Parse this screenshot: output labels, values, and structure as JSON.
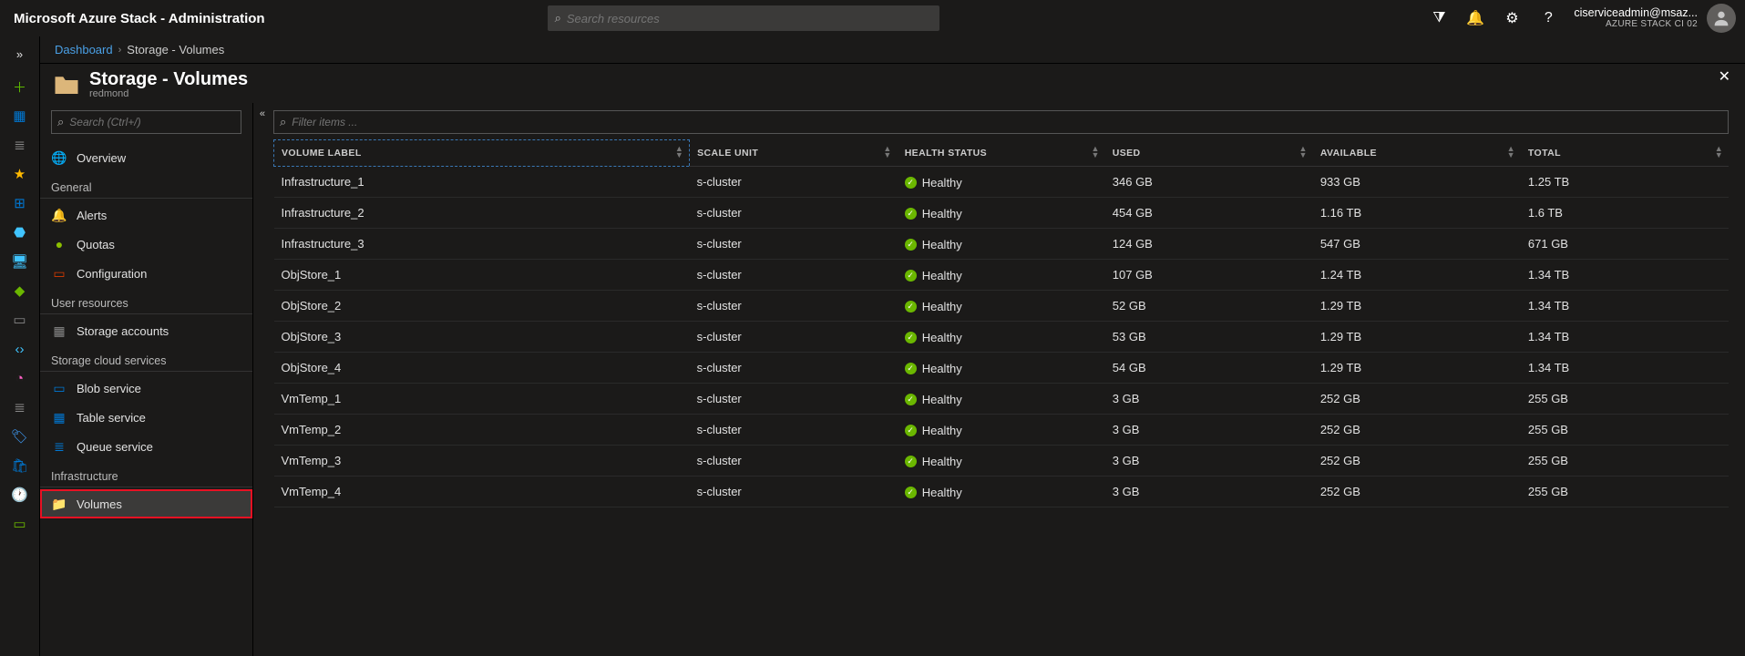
{
  "topbar": {
    "title": "Microsoft Azure Stack - Administration",
    "search_placeholder": "Search resources",
    "account_email": "ciserviceadmin@msaz...",
    "tenant": "AZURE STACK CI 02"
  },
  "breadcrumb": {
    "root": "Dashboard",
    "current": "Storage - Volumes"
  },
  "blade": {
    "title": "Storage - Volumes",
    "subtitle": "redmond"
  },
  "nav": {
    "search_placeholder": "Search (Ctrl+/)",
    "overview": "Overview",
    "sections": [
      {
        "label": "General",
        "items": [
          {
            "label": "Alerts",
            "icon": "🔔",
            "color": "#6bb700"
          },
          {
            "label": "Quotas",
            "icon": "●",
            "color": "#8cbf00"
          },
          {
            "label": "Configuration",
            "icon": "▭",
            "color": "#d83b01"
          }
        ]
      },
      {
        "label": "User resources",
        "items": [
          {
            "label": "Storage accounts",
            "icon": "▦",
            "color": "#888"
          }
        ]
      },
      {
        "label": "Storage cloud services",
        "items": [
          {
            "label": "Blob service",
            "icon": "▭",
            "color": "#0078d4"
          },
          {
            "label": "Table service",
            "icon": "▦",
            "color": "#0078d4"
          },
          {
            "label": "Queue service",
            "icon": "≣",
            "color": "#0078d4"
          }
        ]
      },
      {
        "label": "Infrastructure",
        "items": [
          {
            "label": "Volumes",
            "icon": "📁",
            "color": "#dcb67a",
            "selected": true
          }
        ]
      }
    ]
  },
  "table": {
    "filter_placeholder": "Filter items ...",
    "columns": [
      "VOLUME LABEL",
      "SCALE UNIT",
      "HEALTH STATUS",
      "USED",
      "AVAILABLE",
      "TOTAL"
    ],
    "rows": [
      {
        "label": "Infrastructure_1",
        "scale": "s-cluster",
        "health": "Healthy",
        "used": "346 GB",
        "avail": "933 GB",
        "total": "1.25 TB"
      },
      {
        "label": "Infrastructure_2",
        "scale": "s-cluster",
        "health": "Healthy",
        "used": "454 GB",
        "avail": "1.16 TB",
        "total": "1.6 TB"
      },
      {
        "label": "Infrastructure_3",
        "scale": "s-cluster",
        "health": "Healthy",
        "used": "124 GB",
        "avail": "547 GB",
        "total": "671 GB"
      },
      {
        "label": "ObjStore_1",
        "scale": "s-cluster",
        "health": "Healthy",
        "used": "107 GB",
        "avail": "1.24 TB",
        "total": "1.34 TB"
      },
      {
        "label": "ObjStore_2",
        "scale": "s-cluster",
        "health": "Healthy",
        "used": "52 GB",
        "avail": "1.29 TB",
        "total": "1.34 TB"
      },
      {
        "label": "ObjStore_3",
        "scale": "s-cluster",
        "health": "Healthy",
        "used": "53 GB",
        "avail": "1.29 TB",
        "total": "1.34 TB"
      },
      {
        "label": "ObjStore_4",
        "scale": "s-cluster",
        "health": "Healthy",
        "used": "54 GB",
        "avail": "1.29 TB",
        "total": "1.34 TB"
      },
      {
        "label": "VmTemp_1",
        "scale": "s-cluster",
        "health": "Healthy",
        "used": "3 GB",
        "avail": "252 GB",
        "total": "255 GB"
      },
      {
        "label": "VmTemp_2",
        "scale": "s-cluster",
        "health": "Healthy",
        "used": "3 GB",
        "avail": "252 GB",
        "total": "255 GB"
      },
      {
        "label": "VmTemp_3",
        "scale": "s-cluster",
        "health": "Healthy",
        "used": "3 GB",
        "avail": "252 GB",
        "total": "255 GB"
      },
      {
        "label": "VmTemp_4",
        "scale": "s-cluster",
        "health": "Healthy",
        "used": "3 GB",
        "avail": "252 GB",
        "total": "255 GB"
      }
    ]
  },
  "colors": {
    "bg": "#1b1a19",
    "accent": "#0078d4",
    "healthy": "#6bb700",
    "highlight": "#e81123",
    "folder": "#dcb67a"
  }
}
